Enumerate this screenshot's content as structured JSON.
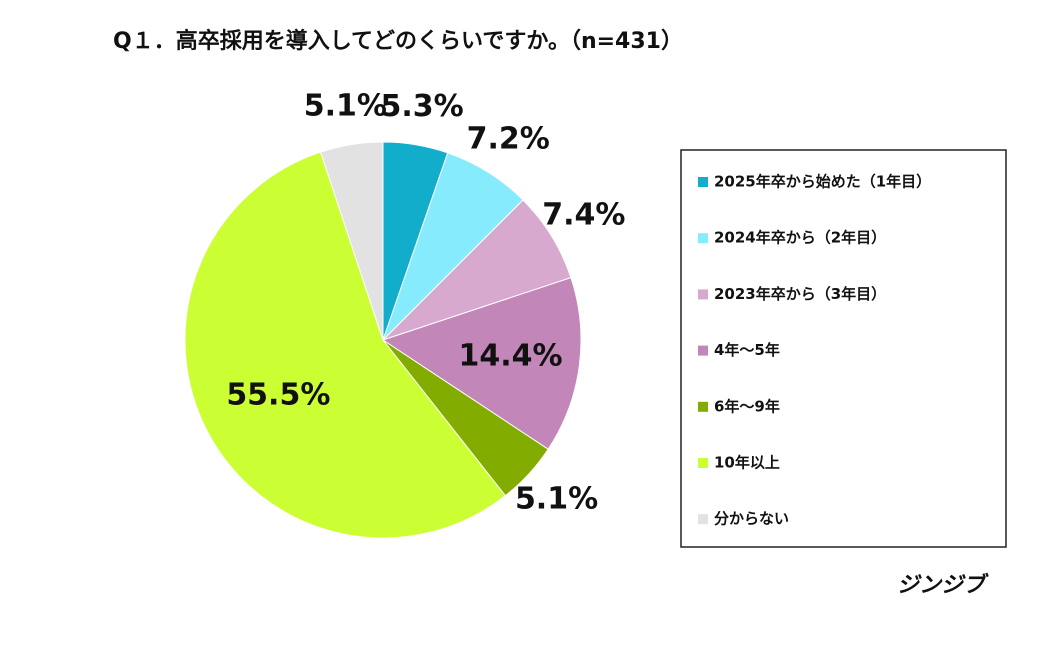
{
  "chart_data": {
    "type": "pie",
    "title": "Q１．高卒採用を導入してどのくらいですか。（n=431）",
    "categories": [
      "2025年卒から始めた（1年目）",
      "2024年卒から（2年目）",
      "2023年卒から（3年目）",
      "4年～5年",
      "6年～9年",
      "10年以上",
      "分からない"
    ],
    "values": [
      5.3,
      7.2,
      7.4,
      14.4,
      5.1,
      55.5,
      5.1
    ],
    "value_labels": [
      "5.3%",
      "7.2%",
      "7.4%",
      "14.4%",
      "5.1%",
      "55.5%",
      "5.1%"
    ],
    "colors": [
      "#12adcb",
      "#86ebfc",
      "#d7a9cf",
      "#c286b8",
      "#82ad00",
      "#ccff33",
      "#e2e2e2"
    ],
    "legend": "right",
    "footer": "ジンジブ"
  }
}
